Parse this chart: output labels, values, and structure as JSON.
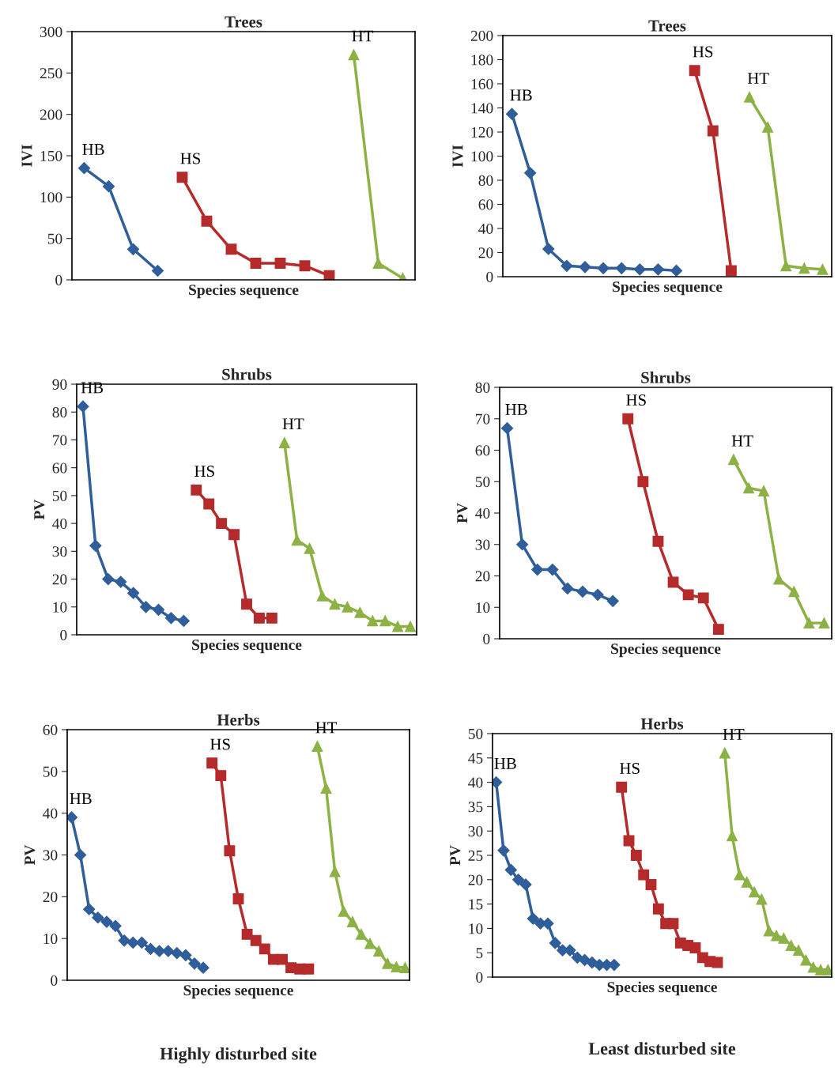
{
  "chart_data": [
    {
      "type": "line",
      "title": "Trees",
      "xlabel": "Species sequence",
      "ylabel": "IVI",
      "categories": [
        null,
        null,
        null,
        null,
        null,
        null,
        null,
        null,
        null,
        null,
        null,
        null,
        null,
        null
      ],
      "ylim": [
        0,
        300
      ],
      "yticks": [
        0,
        50,
        100,
        150,
        200,
        250,
        300
      ],
      "tick_labels": "y",
      "line_style": "solid",
      "series": [
        {
          "name": "HB",
          "color": "#2f5e9b",
          "marker": "diamond",
          "values": [
            135,
            113,
            37,
            11,
            null,
            null,
            null,
            null,
            null,
            null,
            null,
            null,
            null,
            null
          ]
        },
        {
          "name": "HS",
          "color": "#b52a2a",
          "marker": "square",
          "values": [
            null,
            null,
            null,
            null,
            124,
            71,
            37,
            20,
            20,
            17,
            5,
            null,
            null,
            null
          ]
        },
        {
          "name": "HT",
          "color": "#8cb145",
          "marker": "triangle",
          "values": [
            null,
            null,
            null,
            null,
            null,
            null,
            null,
            null,
            null,
            null,
            null,
            272,
            20,
            2
          ]
        }
      ]
    },
    {
      "type": "line",
      "title": "Trees",
      "xlabel": "Species sequence",
      "ylabel": "IVI",
      "categories": [
        null,
        null,
        null,
        null,
        null,
        null,
        null,
        null,
        null,
        null,
        null,
        null,
        null,
        null,
        null,
        null,
        null,
        null
      ],
      "ylim": [
        0,
        200
      ],
      "yticks": [
        0,
        20,
        40,
        60,
        80,
        100,
        120,
        140,
        160,
        180,
        200
      ],
      "tick_labels": "y",
      "line_style": "solid",
      "series": [
        {
          "name": "HB",
          "color": "#2f5e9b",
          "marker": "diamond",
          "values": [
            135,
            86,
            23,
            9,
            8,
            7,
            7,
            6,
            6,
            5,
            null,
            null,
            null,
            null,
            null,
            null,
            null,
            null
          ]
        },
        {
          "name": "HS",
          "color": "#b52a2a",
          "marker": "square",
          "values": [
            null,
            null,
            null,
            null,
            null,
            null,
            null,
            null,
            null,
            null,
            171,
            121,
            5,
            null,
            null,
            null,
            null,
            null
          ]
        },
        {
          "name": "HT",
          "color": "#8cb145",
          "marker": "triangle",
          "values": [
            null,
            null,
            null,
            null,
            null,
            null,
            null,
            null,
            null,
            null,
            null,
            null,
            null,
            149,
            124,
            9,
            7,
            6
          ]
        }
      ]
    },
    {
      "type": "line",
      "title": "Shrubs",
      "xlabel": "Species sequence",
      "ylabel": "PV",
      "categories": [
        null,
        null,
        null,
        null,
        null,
        null,
        null,
        null,
        null,
        null,
        null,
        null,
        null,
        null,
        null,
        null,
        null,
        null,
        null,
        null,
        null,
        null,
        null,
        null,
        null,
        null,
        null
      ],
      "ylim": [
        0,
        90
      ],
      "yticks": [
        0,
        10,
        20,
        30,
        40,
        50,
        60,
        70,
        80,
        90
      ],
      "tick_labels": "y",
      "line_style": "solid",
      "series": [
        {
          "name": "HB",
          "color": "#2f5e9b",
          "marker": "diamond",
          "values": [
            82,
            32,
            20,
            19,
            15,
            10,
            9,
            6,
            5,
            null,
            null,
            null,
            null,
            null,
            null,
            null,
            null,
            null,
            null,
            null,
            null,
            null,
            null,
            null,
            null,
            null,
            null
          ]
        },
        {
          "name": "HS",
          "color": "#b52a2a",
          "marker": "square",
          "values": [
            null,
            null,
            null,
            null,
            null,
            null,
            null,
            null,
            null,
            52,
            47,
            40,
            36,
            11,
            6,
            6,
            null,
            null,
            null,
            null,
            null,
            null,
            null,
            null,
            null,
            null,
            null
          ]
        },
        {
          "name": "HT",
          "color": "#8cb145",
          "marker": "triangle",
          "values": [
            null,
            null,
            null,
            null,
            null,
            null,
            null,
            null,
            null,
            null,
            null,
            null,
            null,
            null,
            null,
            null,
            69,
            34,
            31,
            14,
            11,
            10,
            8,
            5,
            5,
            3,
            3
          ]
        }
      ]
    },
    {
      "type": "line",
      "title": "Shrubs",
      "xlabel": "Species sequence",
      "ylabel": "PV",
      "categories": [
        null,
        null,
        null,
        null,
        null,
        null,
        null,
        null,
        null,
        null,
        null,
        null,
        null,
        null,
        null,
        null,
        null,
        null,
        null,
        null,
        null,
        null
      ],
      "ylim": [
        0,
        80
      ],
      "yticks": [
        0,
        10,
        20,
        30,
        40,
        50,
        60,
        70,
        80
      ],
      "tick_labels": "y",
      "line_style": "solid",
      "series": [
        {
          "name": "HB",
          "color": "#2f5e9b",
          "marker": "diamond",
          "values": [
            67,
            30,
            22,
            22,
            16,
            15,
            14,
            12,
            null,
            null,
            null,
            null,
            null,
            null,
            null,
            null,
            null,
            null,
            null,
            null,
            null,
            null
          ]
        },
        {
          "name": "HS",
          "color": "#b52a2a",
          "marker": "square",
          "values": [
            null,
            null,
            null,
            null,
            null,
            null,
            null,
            null,
            70,
            50,
            31,
            18,
            14,
            13,
            3,
            null,
            null,
            null,
            null,
            null,
            null,
            null
          ]
        },
        {
          "name": "HT",
          "color": "#8cb145",
          "marker": "triangle",
          "values": [
            null,
            null,
            null,
            null,
            null,
            null,
            null,
            null,
            null,
            null,
            null,
            null,
            null,
            null,
            null,
            57,
            48,
            47,
            19,
            15,
            5,
            5
          ]
        }
      ]
    },
    {
      "type": "line",
      "title": "Herbs",
      "xlabel": "Species sequence",
      "ylabel": "PV",
      "annotations": [
        "Highly disturbed site"
      ],
      "categories": [
        null,
        null,
        null,
        null,
        null,
        null,
        null,
        null,
        null,
        null,
        null,
        null,
        null,
        null,
        null,
        null,
        null,
        null,
        null,
        null,
        null,
        null,
        null,
        null,
        null,
        null,
        null,
        null,
        null,
        null,
        null,
        null,
        null,
        null,
        null,
        null,
        null,
        null,
        null
      ],
      "ylim": [
        0,
        60
      ],
      "yticks": [
        0,
        10,
        20,
        30,
        40,
        50,
        60
      ],
      "tick_labels": "y",
      "line_style": "solid",
      "series": [
        {
          "name": "HB",
          "color": "#2f5e9b",
          "marker": "diamond",
          "values": [
            39,
            30,
            17,
            15,
            14,
            13,
            9.5,
            9,
            9,
            7.5,
            7,
            7,
            6.5,
            6,
            4,
            3,
            null,
            null,
            null,
            null,
            null,
            null,
            null,
            null,
            null,
            null,
            null,
            null,
            null,
            null,
            null,
            null,
            null,
            null,
            null,
            null,
            null,
            null,
            null
          ]
        },
        {
          "name": "HS",
          "color": "#b52a2a",
          "marker": "square",
          "values": [
            null,
            null,
            null,
            null,
            null,
            null,
            null,
            null,
            null,
            null,
            null,
            null,
            null,
            null,
            null,
            null,
            52,
            49,
            31,
            19.5,
            11,
            9.5,
            7.5,
            5,
            5,
            3,
            2.7,
            2.7,
            null,
            null,
            null,
            null,
            null,
            null,
            null,
            null,
            null,
            null,
            null
          ]
        },
        {
          "name": "HT",
          "color": "#8cb145",
          "marker": "triangle",
          "values": [
            null,
            null,
            null,
            null,
            null,
            null,
            null,
            null,
            null,
            null,
            null,
            null,
            null,
            null,
            null,
            null,
            null,
            null,
            null,
            null,
            null,
            null,
            null,
            null,
            null,
            null,
            null,
            null,
            56,
            46,
            26,
            16.5,
            14,
            11,
            8.8,
            7,
            4,
            3.2,
            3
          ]
        }
      ]
    },
    {
      "type": "line",
      "title": "Herbs",
      "xlabel": "Species sequence",
      "ylabel": "PV",
      "annotations": [
        "Least disturbed site"
      ],
      "categories": [
        null,
        null,
        null,
        null,
        null,
        null,
        null,
        null,
        null,
        null,
        null,
        null,
        null,
        null,
        null,
        null,
        null,
        null,
        null,
        null,
        null,
        null,
        null,
        null,
        null,
        null,
        null,
        null,
        null,
        null,
        null,
        null,
        null,
        null,
        null,
        null,
        null,
        null,
        null,
        null,
        null,
        null,
        null,
        null,
        null,
        null
      ],
      "ylim": [
        0,
        50
      ],
      "yticks": [
        0,
        5,
        10,
        15,
        20,
        25,
        30,
        35,
        40,
        45,
        50
      ],
      "tick_labels": "y",
      "line_style": "solid",
      "series": [
        {
          "name": "HB",
          "color": "#2f5e9b",
          "marker": "diamond",
          "values": [
            40,
            26,
            22,
            20,
            19,
            12,
            11,
            11,
            7,
            5.5,
            5.5,
            4,
            3.5,
            3,
            2.5,
            2.5,
            2.5,
            null,
            null,
            null,
            null,
            null,
            null,
            null,
            null,
            null,
            null,
            null,
            null,
            null,
            null,
            null,
            null,
            null,
            null,
            null,
            null,
            null,
            null,
            null,
            null,
            null,
            null,
            null,
            null,
            null
          ]
        },
        {
          "name": "HS",
          "color": "#b52a2a",
          "marker": "square",
          "values": [
            null,
            null,
            null,
            null,
            null,
            null,
            null,
            null,
            null,
            null,
            null,
            null,
            null,
            null,
            null,
            null,
            null,
            39,
            28,
            25,
            21,
            19,
            14,
            11,
            11,
            7,
            6.5,
            6,
            4,
            3.2,
            3,
            null,
            null,
            null,
            null,
            null,
            null,
            null,
            null,
            null,
            null,
            null,
            null,
            null,
            null,
            null
          ]
        },
        {
          "name": "HT",
          "color": "#8cb145",
          "marker": "triangle",
          "values": [
            null,
            null,
            null,
            null,
            null,
            null,
            null,
            null,
            null,
            null,
            null,
            null,
            null,
            null,
            null,
            null,
            null,
            null,
            null,
            null,
            null,
            null,
            null,
            null,
            null,
            null,
            null,
            null,
            null,
            null,
            null,
            46,
            29,
            21,
            19.5,
            17.5,
            16,
            9.5,
            8.5,
            8,
            6.5,
            5.5,
            3.5,
            2,
            1.5,
            1.5
          ]
        }
      ]
    }
  ]
}
